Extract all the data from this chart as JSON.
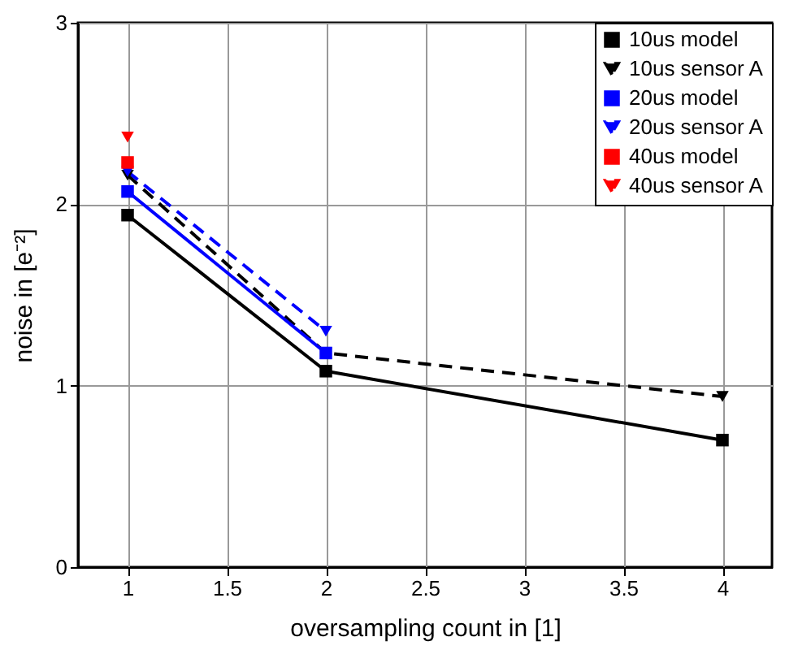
{
  "chart_data": {
    "type": "line",
    "xlabel": "oversampling count in [1]",
    "ylabel": "noise in [e⁻²]",
    "xlim": [
      0.75,
      4.25
    ],
    "xticks": [
      1,
      1.5,
      2,
      2.5,
      3,
      3.5,
      4
    ],
    "ylim": [
      0,
      3
    ],
    "yticks": [
      0,
      1,
      2,
      3
    ],
    "grid": true,
    "legend": "top right",
    "series": [
      {
        "name": "10us model",
        "color": "#000000",
        "marker": "square",
        "line_style": "solid",
        "x": [
          1,
          2,
          4
        ],
        "values": [
          1.94,
          1.08,
          0.7
        ]
      },
      {
        "name": "10us sensor A",
        "color": "#000000",
        "marker": "triangle",
        "line_style": "dashed",
        "x": [
          1,
          2,
          4
        ],
        "values": [
          2.16,
          1.18,
          0.94
        ]
      },
      {
        "name": "20us model",
        "color": "#0000ff",
        "marker": "square",
        "line_style": "solid",
        "x": [
          1,
          2
        ],
        "values": [
          2.07,
          1.18
        ]
      },
      {
        "name": "20us sensor A",
        "color": "#0000ff",
        "marker": "triangle",
        "line_style": "dashed",
        "x": [
          1,
          2
        ],
        "values": [
          2.18,
          1.3
        ]
      },
      {
        "name": "40us model",
        "color": "#ff0000",
        "marker": "square",
        "line_style": "solid",
        "x": [
          1
        ],
        "values": [
          2.23
        ]
      },
      {
        "name": "40us sensor A",
        "color": "#ff0000",
        "marker": "triangle",
        "line_style": "dashed",
        "x": [
          1
        ],
        "values": [
          2.37
        ]
      }
    ]
  }
}
